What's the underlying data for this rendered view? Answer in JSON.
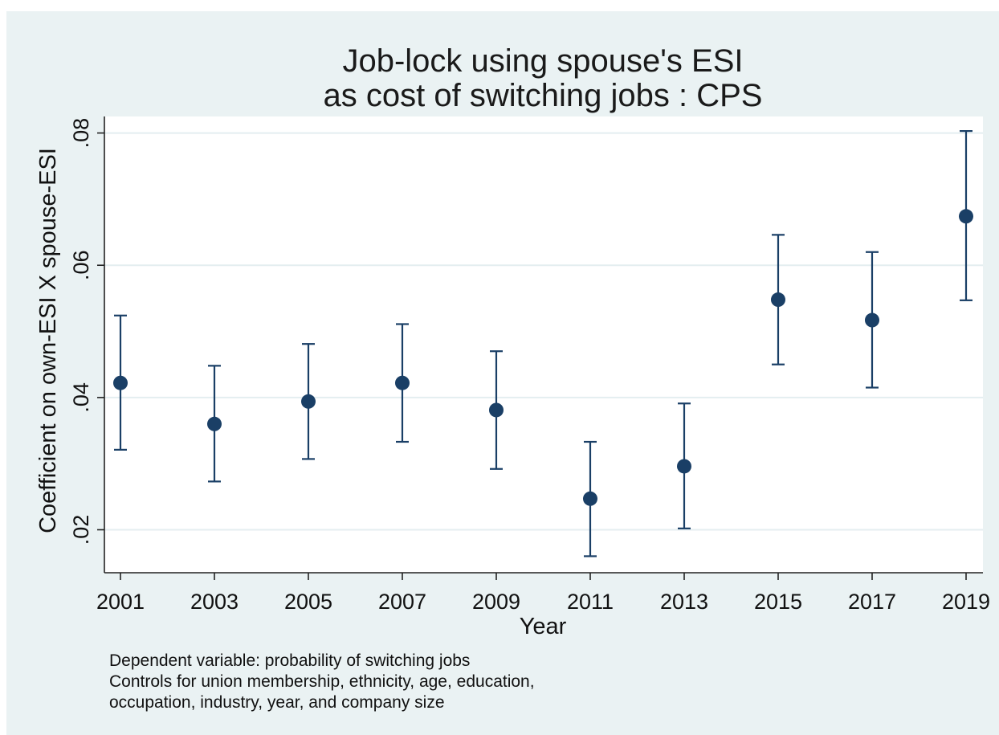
{
  "chart_data": {
    "type": "scatter",
    "title_lines": [
      "Job-lock using spouse's ESI",
      "as cost of switching jobs : CPS"
    ],
    "xlabel": "Year",
    "ylabel": "Coefficient on own-ESI X spouse-ESI",
    "categories": [
      "2001",
      "2003",
      "2005",
      "2007",
      "2009",
      "2011",
      "2013",
      "2015",
      "2017",
      "2019"
    ],
    "y_ticks": [
      0.02,
      0.04,
      0.06,
      0.08
    ],
    "y_tick_labels": [
      ".02",
      ".04",
      ".06",
      ".08"
    ],
    "ylim": [
      0.0135,
      0.0825
    ],
    "grid": true,
    "series": [
      {
        "values": [
          0.0422,
          0.036,
          0.0394,
          0.0422,
          0.0381,
          0.0247,
          0.0296,
          0.0548,
          0.0517,
          0.0674
        ],
        "ci_low": [
          0.0321,
          0.0273,
          0.0307,
          0.0333,
          0.0292,
          0.016,
          0.0202,
          0.045,
          0.0415,
          0.0547
        ],
        "ci_high": [
          0.0524,
          0.0448,
          0.0481,
          0.0511,
          0.047,
          0.0333,
          0.0391,
          0.0646,
          0.062,
          0.0803
        ]
      }
    ],
    "colors": {
      "marker": "#1a3f66",
      "background": "#eaf2f3",
      "plot": "#ffffff",
      "grid": "#e4eef0"
    }
  },
  "notes": [
    "Dependent variable: probability of switching jobs",
    "Controls for union membership, ethnicity, age, education,",
    "occupation, industry, year, and company size"
  ]
}
